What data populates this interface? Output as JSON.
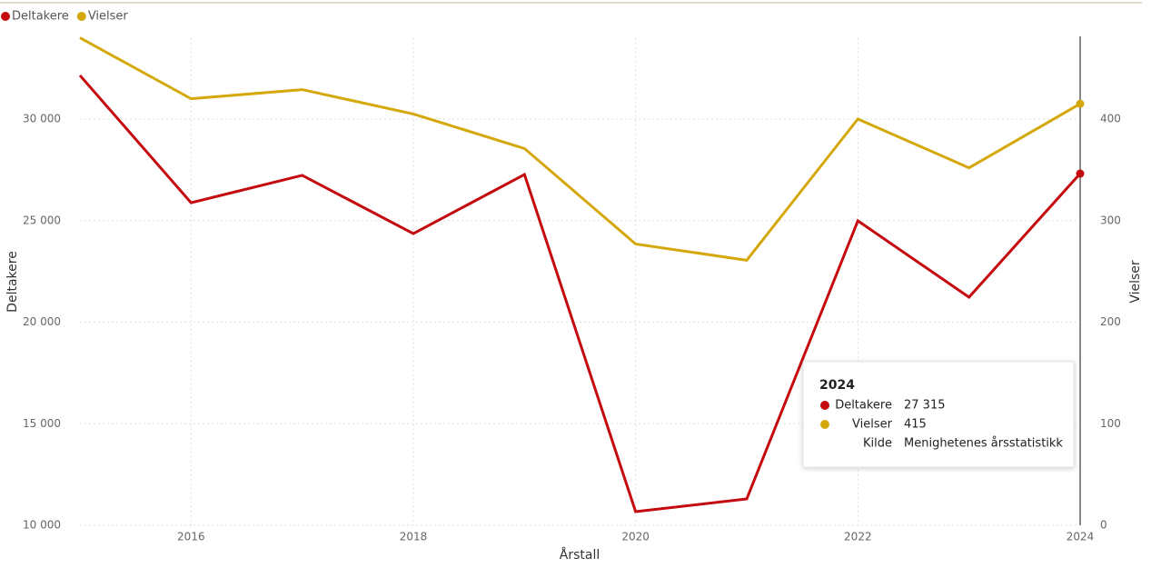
{
  "chart_data": {
    "type": "line",
    "x_label": "Årstall",
    "y_label": "Deltakere",
    "y2_label": "Vielser",
    "x": [
      2015,
      2016,
      2017,
      2018,
      2019,
      2020,
      2021,
      2022,
      2023,
      2024
    ],
    "xlim": [
      2015,
      2024
    ],
    "xticks": [
      2016,
      2018,
      2020,
      2022,
      2024
    ],
    "ylim": [
      10000,
      34000
    ],
    "yticks": [
      {
        "value": 10000,
        "label": "10 000"
      },
      {
        "value": 15000,
        "label": "15 000"
      },
      {
        "value": 20000,
        "label": "20 000"
      },
      {
        "value": 25000,
        "label": "25 000"
      },
      {
        "value": 30000,
        "label": "30 000"
      }
    ],
    "y2lim": [
      0,
      480
    ],
    "y2ticks": [
      0,
      100,
      200,
      300,
      400
    ],
    "grid": true,
    "legend": "top-left",
    "series": [
      {
        "name": "Deltakere",
        "color": "#c4090f",
        "values": [
          32150,
          25880,
          27230,
          24360,
          27270,
          10670,
          11300,
          24990,
          21230,
          27315
        ]
      },
      {
        "name": "Vielser",
        "color": "#d4a80a",
        "axis": "y2",
        "values": [
          480,
          420,
          429,
          405,
          371,
          277,
          261,
          400,
          352,
          415
        ]
      }
    ],
    "tooltip": {
      "title": "2024",
      "rows": [
        {
          "name": "Deltakere",
          "value": "27 315"
        },
        {
          "name": "Vielser",
          "value": "415"
        },
        {
          "name": "Kilde",
          "value": "Menighetenes årsstatistikk"
        }
      ]
    }
  }
}
